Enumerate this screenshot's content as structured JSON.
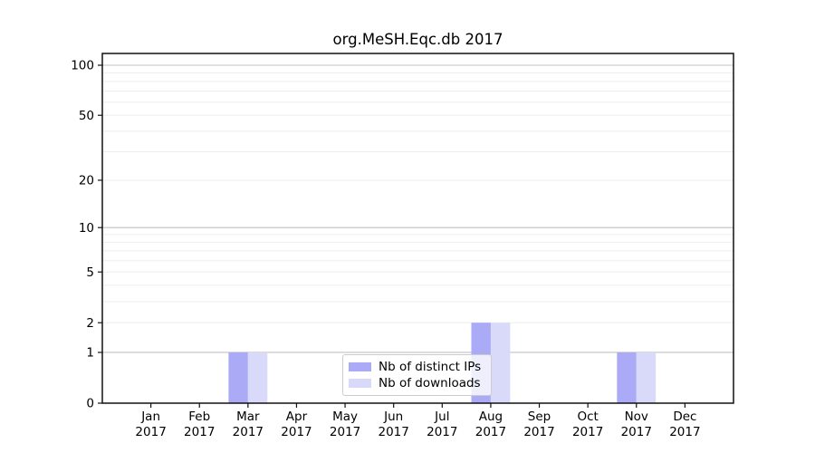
{
  "figure": {
    "title": "org.MeSH.Eqc.db 2017"
  },
  "chart_data": {
    "type": "bar",
    "title": "org.MeSH.Eqc.db 2017",
    "categories": [
      "Jan",
      "Feb",
      "Mar",
      "Apr",
      "May",
      "Jun",
      "Jul",
      "Aug",
      "Sep",
      "Oct",
      "Nov",
      "Dec"
    ],
    "x_year_label": "2017",
    "series": [
      {
        "name": "Nb of distinct IPs",
        "color": "#aaaaf6",
        "values": [
          0,
          0,
          1,
          0,
          0,
          0,
          0,
          2,
          0,
          0,
          1,
          0
        ]
      },
      {
        "name": "Nb of downloads",
        "color": "#d9d9fa",
        "values": [
          0,
          0,
          1,
          0,
          0,
          0,
          0,
          2,
          0,
          0,
          1,
          0
        ]
      }
    ],
    "yscale": "log10(value+1)",
    "y_tick_values": [
      0,
      1,
      2,
      5,
      10,
      20,
      50,
      100
    ],
    "y_gridlines_major": [
      1,
      10,
      100
    ],
    "y_gridlines_minor": [
      2,
      3,
      4,
      5,
      6,
      7,
      8,
      9,
      20,
      30,
      40,
      50,
      60,
      70,
      80,
      90
    ],
    "ylim": [
      0,
      117
    ],
    "grid": "horizontal",
    "legend_position": "inside lower-center",
    "colors": {
      "bar_dark": "#aaaaf6",
      "bar_light": "#d9d9fa",
      "grid_major": "#c2c2c2",
      "grid_minor": "#ededed",
      "axis": "#111111",
      "text": "#000000"
    }
  }
}
